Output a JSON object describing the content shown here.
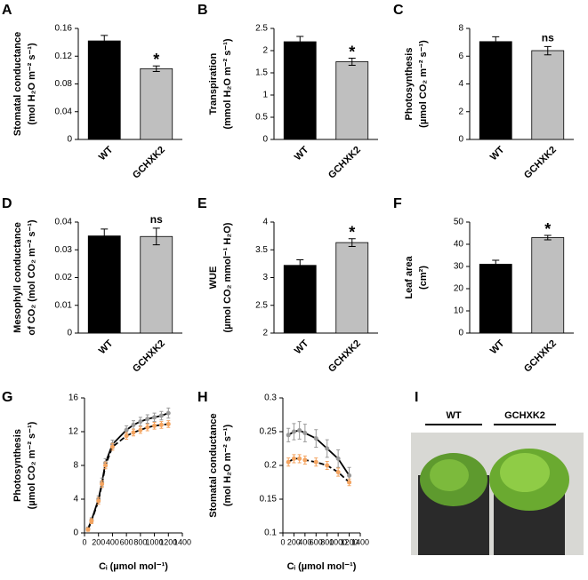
{
  "chart_data": [
    {
      "type": "bar",
      "label": "A",
      "ylabel": [
        "Stomatal conductance",
        "(mol H₂O m⁻² s⁻¹)"
      ],
      "categories": [
        "WT",
        "GCHXK2"
      ],
      "values": [
        0.142,
        0.102
      ],
      "errors": [
        0.008,
        0.004
      ],
      "colors": [
        "#000000",
        "#bfbfbf"
      ],
      "annotations": [
        null,
        "*"
      ],
      "ylim": [
        0,
        0.16
      ],
      "yticks": [
        0,
        0.04,
        0.08,
        0.12,
        0.16
      ]
    },
    {
      "type": "bar",
      "label": "B",
      "ylabel": [
        "Transpiration",
        "(mmol H₂O m⁻² s⁻¹)"
      ],
      "categories": [
        "WT",
        "GCHXK2"
      ],
      "values": [
        2.2,
        1.75
      ],
      "errors": [
        0.12,
        0.08
      ],
      "colors": [
        "#000000",
        "#bfbfbf"
      ],
      "annotations": [
        null,
        "*"
      ],
      "ylim": [
        0,
        2.5
      ],
      "yticks": [
        0,
        0.5,
        1,
        1.5,
        2,
        2.5
      ]
    },
    {
      "type": "bar",
      "label": "C",
      "ylabel": [
        "Photosynthesis",
        "(µmol CO₂ m⁻² s⁻¹)"
      ],
      "categories": [
        "WT",
        "GCHXK2"
      ],
      "values": [
        7.05,
        6.4
      ],
      "errors": [
        0.35,
        0.3
      ],
      "colors": [
        "#000000",
        "#bfbfbf"
      ],
      "annotations": [
        null,
        "ns"
      ],
      "ylim": [
        0,
        8
      ],
      "yticks": [
        0,
        2,
        4,
        6,
        8
      ]
    },
    {
      "type": "bar",
      "label": "D",
      "ylabel": [
        "Mesophyll conductance",
        "of CO₂ (mol CO₂ m⁻² s⁻¹)"
      ],
      "categories": [
        "WT",
        "GCHXK2"
      ],
      "values": [
        0.035,
        0.0348
      ],
      "errors": [
        0.0025,
        0.003
      ],
      "colors": [
        "#000000",
        "#bfbfbf"
      ],
      "annotations": [
        null,
        "ns"
      ],
      "ylim": [
        0,
        0.04
      ],
      "yticks": [
        0,
        0.01,
        0.02,
        0.03,
        0.04
      ]
    },
    {
      "type": "bar",
      "label": "E",
      "ylabel": [
        "WUE",
        "(µmol CO₂ mmol⁻¹ H₂O)"
      ],
      "categories": [
        "WT",
        "GCHXK2"
      ],
      "values": [
        3.22,
        3.63
      ],
      "errors": [
        0.1,
        0.07
      ],
      "colors": [
        "#000000",
        "#bfbfbf"
      ],
      "annotations": [
        null,
        "*"
      ],
      "ylim": [
        2,
        4
      ],
      "yticks": [
        2,
        2.5,
        3,
        3.5,
        4
      ]
    },
    {
      "type": "bar",
      "label": "F",
      "ylabel": [
        "Leaf area",
        "(cm²)"
      ],
      "categories": [
        "WT",
        "GCHXK2"
      ],
      "values": [
        31,
        43
      ],
      "errors": [
        1.8,
        1
      ],
      "colors": [
        "#000000",
        "#bfbfbf"
      ],
      "annotations": [
        null,
        "*"
      ],
      "ylim": [
        0,
        50
      ],
      "yticks": [
        0,
        10,
        20,
        30,
        40,
        50
      ]
    },
    {
      "type": "line",
      "label": "G",
      "ylabel": [
        "Photosynthesis",
        "(µmol CO₂ m⁻² s⁻¹)"
      ],
      "xlabel": "Cᵢ (µmol mol⁻¹)",
      "x": [
        50,
        100,
        200,
        250,
        300,
        400,
        600,
        700,
        800,
        900,
        1000,
        1100,
        1200
      ],
      "series": [
        {
          "color": "#999999",
          "dash": false,
          "values": [
            0.5,
            1.5,
            4,
            6,
            8.3,
            10.5,
            12.2,
            12.8,
            13.2,
            13.5,
            13.7,
            13.9,
            14.2
          ],
          "errors": [
            0.2,
            0.3,
            0.4,
            0.5,
            0.5,
            0.5,
            0.5,
            0.5,
            0.5,
            0.5,
            0.5,
            0.5,
            0.6
          ]
        },
        {
          "color": "#f4a460",
          "dash": true,
          "values": [
            0.4,
            1.4,
            3.8,
            5.8,
            8,
            10.2,
            11.5,
            11.9,
            12.2,
            12.5,
            12.7,
            12.8,
            12.9
          ],
          "errors": [
            0.2,
            0.3,
            0.4,
            0.4,
            0.4,
            0.4,
            0.4,
            0.4,
            0.4,
            0.4,
            0.4,
            0.4,
            0.4
          ]
        }
      ],
      "xlim": [
        0,
        1400
      ],
      "xticks": [
        0,
        200,
        400,
        600,
        800,
        1000,
        1200,
        1400
      ],
      "ylim": [
        0,
        16
      ],
      "yticks": [
        0,
        4,
        8,
        12,
        16
      ]
    },
    {
      "type": "line",
      "label": "H",
      "ylabel": [
        "Stomatal conductance",
        "(mol H₂O m⁻² s⁻¹)"
      ],
      "xlabel": "Cᵢ (µmol mol⁻¹)",
      "x": [
        100,
        200,
        300,
        400,
        600,
        800,
        1000,
        1200
      ],
      "series": [
        {
          "color": "#999999",
          "dash": false,
          "values": [
            0.245,
            0.25,
            0.252,
            0.248,
            0.24,
            0.225,
            0.21,
            0.185
          ],
          "errors": [
            0.01,
            0.012,
            0.013,
            0.013,
            0.013,
            0.013,
            0.013,
            0.012
          ]
        },
        {
          "color": "#f4a460",
          "dash": true,
          "values": [
            0.205,
            0.21,
            0.21,
            0.208,
            0.205,
            0.2,
            0.19,
            0.175
          ],
          "errors": [
            0.006,
            0.006,
            0.006,
            0.006,
            0.006,
            0.006,
            0.006,
            0.005
          ]
        }
      ],
      "xlim": [
        0,
        1400
      ],
      "xticks": [
        0,
        200,
        400,
        600,
        800,
        1000,
        1200,
        1400
      ],
      "ylim": [
        0.1,
        0.3
      ],
      "yticks": [
        0.1,
        0.15,
        0.2,
        0.25,
        0.3
      ]
    }
  ],
  "photo": {
    "label": "I",
    "groups": [
      "WT",
      "GCHXK2"
    ]
  }
}
